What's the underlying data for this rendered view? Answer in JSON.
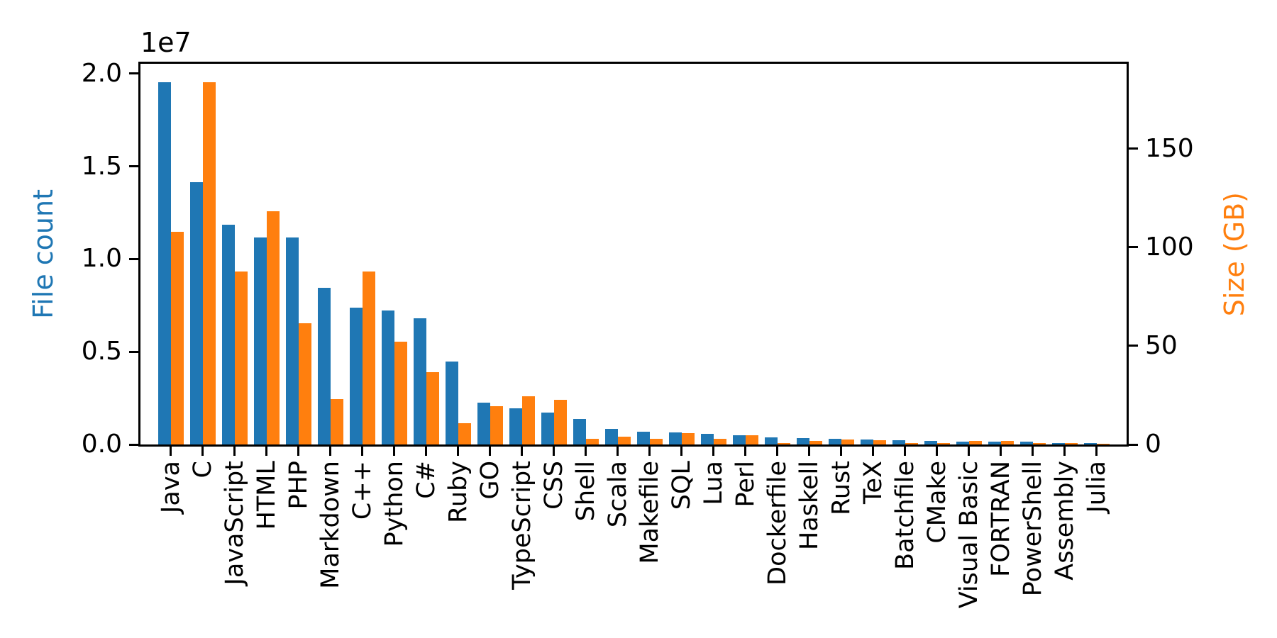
{
  "figure": {
    "background": "#ffffff",
    "frame_color": "#000000"
  },
  "chart_data": {
    "type": "bar",
    "title": "",
    "grid": false,
    "legend_position": "none",
    "categories": [
      "Java",
      "C",
      "JavaScript",
      "HTML",
      "PHP",
      "Markdown",
      "C++",
      "Python",
      "C#",
      "Ruby",
      "GO",
      "TypeScript",
      "CSS",
      "Shell",
      "Scala",
      "Makefile",
      "SQL",
      "Lua",
      "Perl",
      "Dockerfile",
      "Haskell",
      "Rust",
      "TeX",
      "Batchfile",
      "CMake",
      "Visual Basic",
      "FORTRAN",
      "PowerShell",
      "Assembly",
      "Julia"
    ],
    "series": [
      {
        "name": "File count",
        "axis": "left",
        "color": "#1f77b4",
        "values": [
          19548190,
          14143113,
          11839883,
          11178557,
          11177610,
          8464626,
          7380520,
          7226626,
          6811652,
          4473331,
          2265436,
          1940406,
          1734406,
          1385648,
          835755,
          679430,
          656671,
          578554,
          497949,
          366505,
          340623,
          322431,
          251015,
          236945,
          175282,
          155652,
          142038,
          136846,
          82905,
          58317
        ]
      },
      {
        "name": "Size (GB)",
        "axis": "right",
        "color": "#ff7f0e",
        "values": [
          107.7,
          183.83,
          87.82,
          118.12,
          61.41,
          23.09,
          87.73,
          52.03,
          36.83,
          10.95,
          19.28,
          24.59,
          22.67,
          3.01,
          3.87,
          2.92,
          5.67,
          2.81,
          4.7,
          0.71,
          1.85,
          2.68,
          2.15,
          0.7,
          0.54,
          1.91,
          1.62,
          0.69,
          0.78,
          0.29
        ]
      }
    ],
    "left_axis": {
      "label": "File count",
      "color": "#1f77b4",
      "offset_label": "1e7",
      "tick_labels": [
        "0.0",
        "0.5",
        "1.0",
        "1.5",
        "2.0"
      ],
      "tick_values": [
        0,
        5000000,
        10000000,
        15000000,
        20000000
      ],
      "range": [
        0,
        20525600
      ]
    },
    "right_axis": {
      "label": "Size (GB)",
      "color": "#ff7f0e",
      "tick_labels": [
        "0",
        "50",
        "100",
        "150"
      ],
      "tick_values": [
        0,
        50,
        100,
        150
      ],
      "range": [
        0,
        193
      ]
    },
    "x_axis": {
      "tick_label_rotation": 90
    }
  }
}
